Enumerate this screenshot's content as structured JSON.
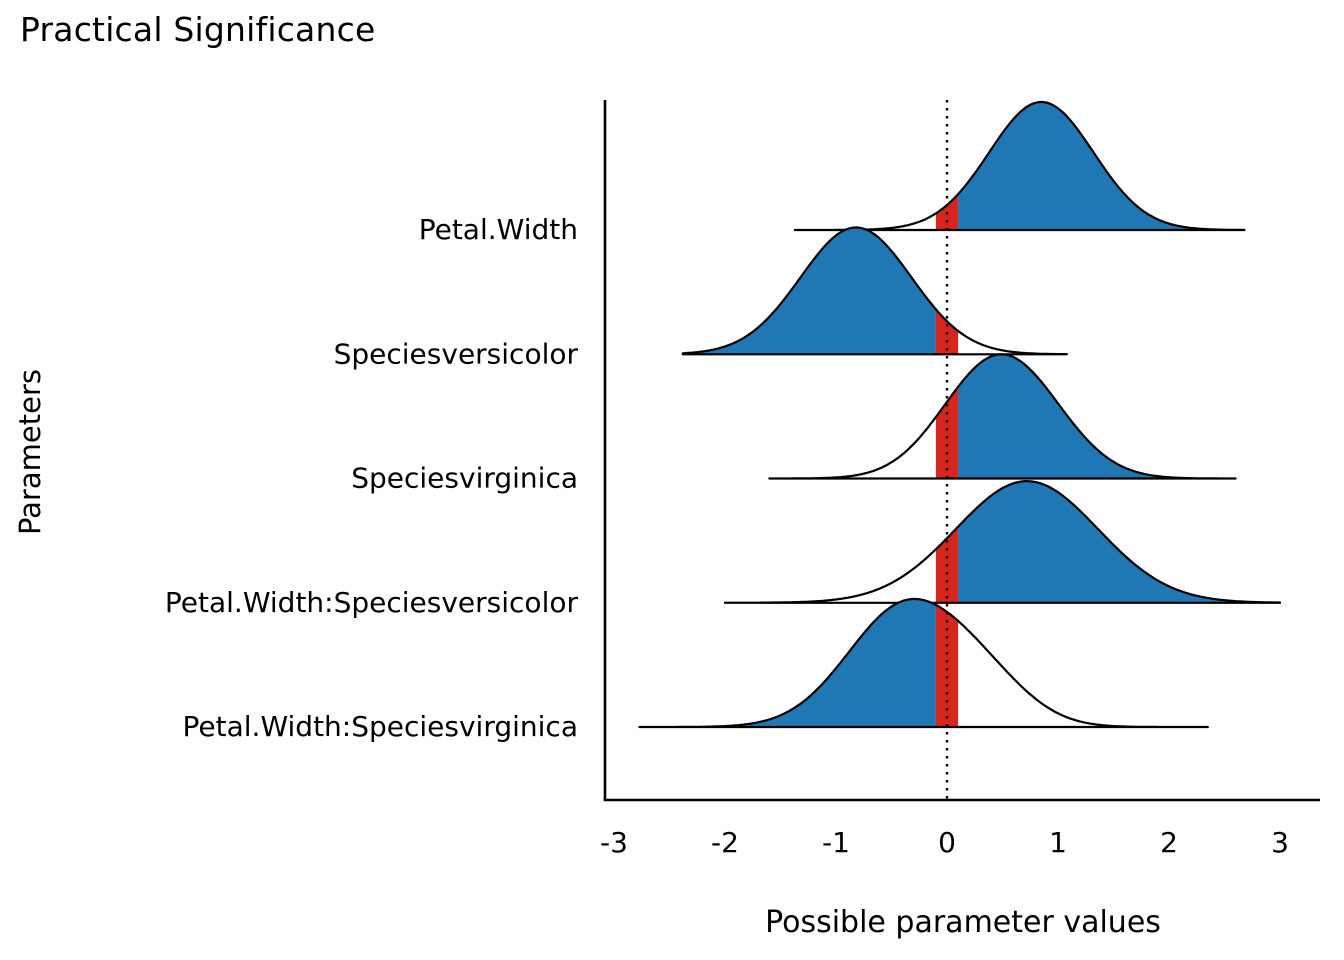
{
  "chart_data": {
    "type": "ridgeline-density",
    "title": "Practical Significance",
    "xlabel": "Possible parameter values",
    "ylabel": "Parameters",
    "x_ticks": [
      -3,
      -2,
      -1,
      0,
      1,
      2,
      3
    ],
    "xlim": [
      -3.1,
      3.35
    ],
    "zero_line": 0,
    "rope": [
      -0.1,
      0.1
    ],
    "grid": "off",
    "legend": "none",
    "colors": {
      "significant": "#1f77b4",
      "rope": "#d7261d",
      "outline": "#000000",
      "background": "#ffffff"
    },
    "ridges": [
      {
        "label": "Petal.Width",
        "direction": "positive",
        "x_range": [
          -1.37,
          2.68
        ],
        "peak": 1.0,
        "components": [
          {
            "mean": 0.85,
            "sd": 0.47,
            "weight": 1.0
          }
        ]
      },
      {
        "label": "Speciesversicolor",
        "direction": "negative",
        "x_range": [
          -2.38,
          1.08
        ],
        "peak": 0.99,
        "components": [
          {
            "mean": -0.82,
            "sd": 0.5,
            "weight": 1.0
          }
        ]
      },
      {
        "label": "Speciesvirginica",
        "direction": "positive",
        "x_range": [
          -1.6,
          2.6
        ],
        "peak": 0.97,
        "components": [
          {
            "mean": 0.27,
            "sd": 0.44,
            "weight": 0.45
          },
          {
            "mean": 0.68,
            "sd": 0.46,
            "weight": 0.55
          }
        ]
      },
      {
        "label": "Petal.Width:Speciesversicolor",
        "direction": "positive",
        "x_range": [
          -2.0,
          3.0
        ],
        "peak": 0.95,
        "components": [
          {
            "mean": 0.72,
            "sd": 0.64,
            "weight": 1.0
          }
        ]
      },
      {
        "label": "Petal.Width:Speciesvirginica",
        "direction": "negative",
        "x_range": [
          -2.77,
          2.35
        ],
        "peak": 1.0,
        "components": [
          {
            "mean": -0.38,
            "sd": 0.52,
            "weight": 0.78
          },
          {
            "mean": 0.35,
            "sd": 0.42,
            "weight": 0.22
          }
        ]
      }
    ]
  }
}
